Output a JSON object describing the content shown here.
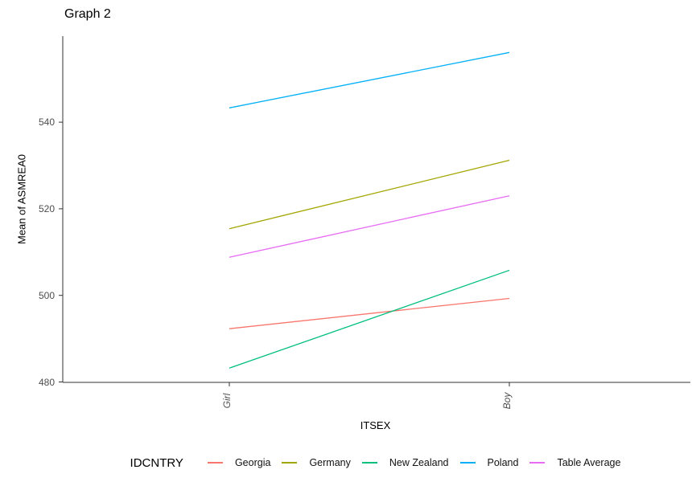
{
  "chart_data": {
    "type": "line",
    "title": "Graph 2",
    "xlabel": "ITSEX",
    "ylabel": "Mean of ASMREA0",
    "categories": [
      "Girl",
      "Boy"
    ],
    "series": [
      {
        "name": "Georgia",
        "color": "#F8766D",
        "values": [
          492.3,
          499.3
        ]
      },
      {
        "name": "Germany",
        "color": "#A3A500",
        "values": [
          515.4,
          531.2
        ]
      },
      {
        "name": "New Zealand",
        "color": "#00BF7D",
        "values": [
          483.2,
          505.8
        ]
      },
      {
        "name": "Poland",
        "color": "#00B0F6",
        "values": [
          543.3,
          556.1
        ]
      },
      {
        "name": "Table Average",
        "color": "#E76BF3",
        "values": [
          508.8,
          523.0
        ]
      }
    ],
    "y_ticks": [
      480,
      500,
      520,
      540
    ],
    "ylim": [
      479.6,
      559.6
    ],
    "grid": false,
    "legend": {
      "title": "IDCNTRY",
      "position": "bottom",
      "entries": [
        "Georgia",
        "Germany",
        "New Zealand",
        "Poland",
        "Table Average"
      ]
    }
  }
}
